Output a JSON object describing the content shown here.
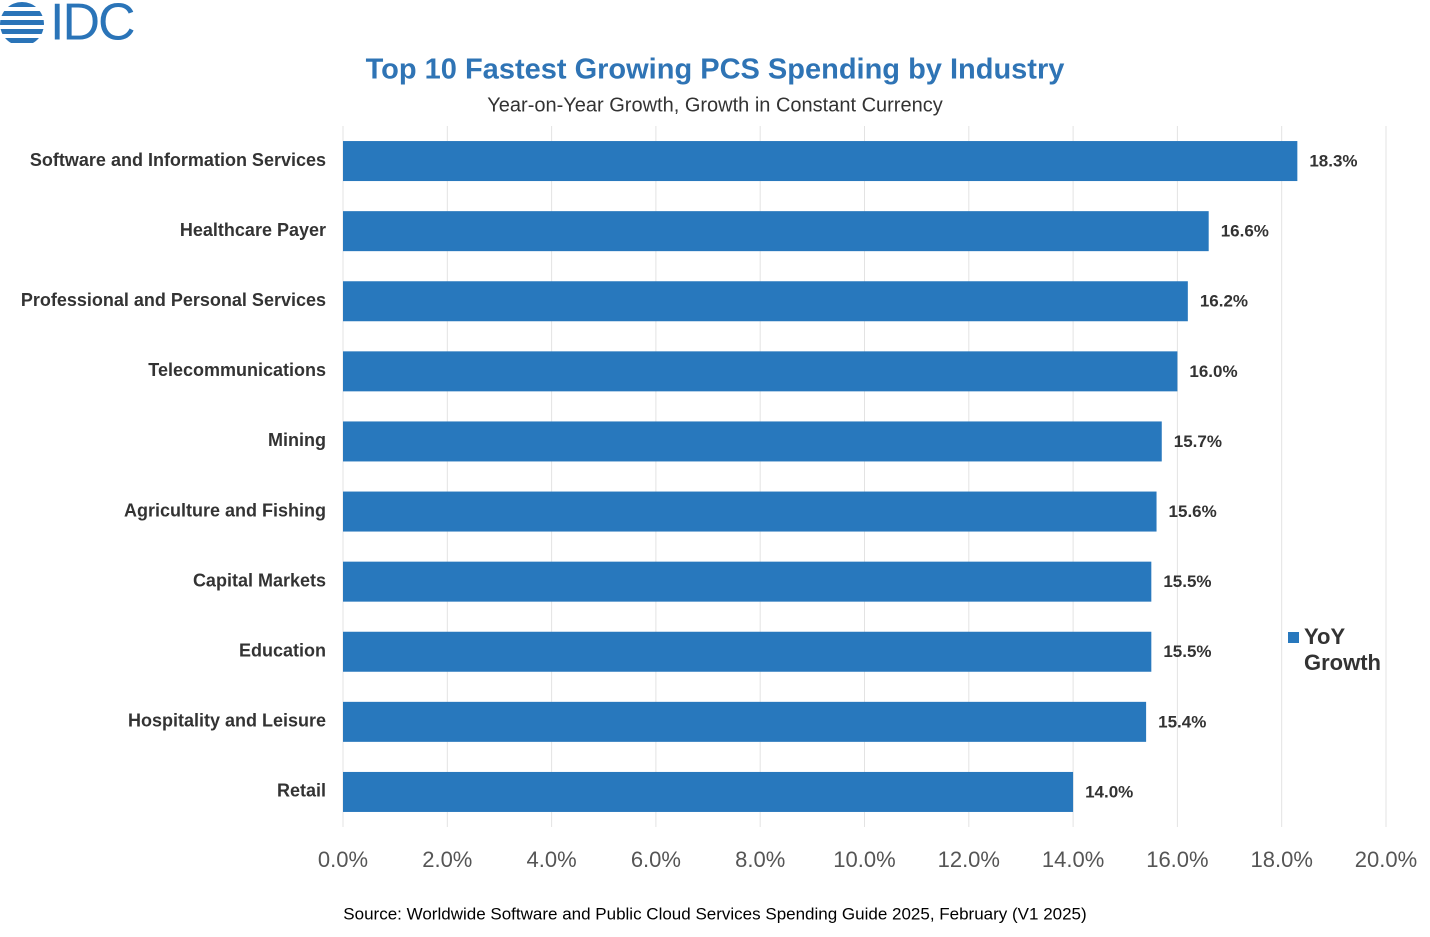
{
  "logo": "IDC",
  "chart_data": {
    "type": "bar",
    "orientation": "horizontal",
    "title": "Top 10 Fastest Growing PCS Spending by Industry",
    "subtitle": "Year-on-Year Growth, Growth in Constant Currency",
    "source": "Source: Worldwide Software and Public Cloud Services Spending Guide 2025, February (V1 2025)",
    "categories": [
      "Software and Information Services",
      "Healthcare Payer",
      "Professional and Personal Services",
      "Telecommunications",
      "Mining",
      "Agriculture and Fishing",
      "Capital Markets",
      "Education",
      "Hospitality and Leisure",
      "Retail"
    ],
    "series": [
      {
        "name": "YoY Growth",
        "color": "#2878bd",
        "values": [
          18.3,
          16.6,
          16.2,
          16.0,
          15.7,
          15.6,
          15.5,
          15.5,
          15.4,
          14.0
        ],
        "value_labels": [
          "18.3%",
          "16.6%",
          "16.2%",
          "16.0%",
          "15.7%",
          "15.6%",
          "15.5%",
          "15.5%",
          "15.4%",
          "14.0%"
        ]
      }
    ],
    "xlim": [
      0,
      20
    ],
    "xticks": [
      {
        "value": 0,
        "label": "0.0%"
      },
      {
        "value": 2,
        "label": "2.0%"
      },
      {
        "value": 4,
        "label": "4.0%"
      },
      {
        "value": 6,
        "label": "6.0%"
      },
      {
        "value": 8,
        "label": "8.0%"
      },
      {
        "value": 10,
        "label": "10.0%"
      },
      {
        "value": 12,
        "label": "12.0%"
      },
      {
        "value": 14,
        "label": "14.0%"
      },
      {
        "value": 16,
        "label": "16.0%"
      },
      {
        "value": 18,
        "label": "18.0%"
      },
      {
        "value": 20,
        "label": "20.0%"
      }
    ],
    "grid": true,
    "legend": "right"
  }
}
